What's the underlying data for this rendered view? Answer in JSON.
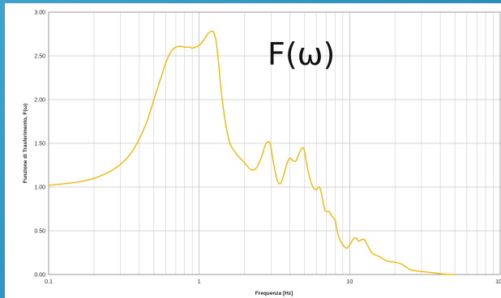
{
  "chart_data": {
    "type": "line",
    "title": "",
    "annotation": "F(ω)",
    "xlabel": "Frequenza [Hz]",
    "ylabel": "Funzione di Trasferimento, F(ω)",
    "xscale": "log",
    "xlim": [
      0.1,
      100
    ],
    "ylim": [
      0.0,
      3.0
    ],
    "grid": true,
    "x_ticks": [
      "0.1",
      "1",
      "10",
      "100"
    ],
    "y_ticks": [
      "0.00",
      "0.50",
      "1.00",
      "1.50",
      "2.00",
      "2.50",
      "3.00"
    ],
    "line_color": "#f2b807",
    "series": [
      {
        "x": [
          0.1,
          0.13,
          0.16,
          0.2,
          0.25,
          0.3,
          0.35,
          0.4,
          0.45,
          0.5,
          0.55,
          0.6,
          0.65,
          0.7,
          0.75,
          0.8,
          0.85,
          0.9,
          0.95,
          1.0,
          1.05,
          1.1,
          1.15,
          1.2,
          1.25,
          1.3,
          1.35,
          1.4,
          1.5,
          1.6,
          1.7,
          1.8,
          2.0,
          2.2,
          2.4,
          2.6,
          2.75,
          2.9,
          3.0,
          3.1,
          3.3,
          3.5,
          3.8,
          4.0,
          4.2,
          4.4,
          4.6,
          4.8,
          4.9,
          5.0,
          5.2,
          5.4,
          5.6,
          5.8,
          6.0,
          6.3,
          6.5,
          6.8,
          7.0,
          7.3,
          7.6,
          8.0,
          8.3,
          8.6,
          9.0,
          9.5,
          10.0,
          10.5,
          11.0,
          11.5,
          12.0,
          12.5,
          13.0,
          14.0,
          15.0,
          16.0,
          17.0,
          18.0,
          20.0,
          22.0,
          25.0,
          28.0,
          32.0,
          36.0,
          40.0,
          45.0,
          50.0
        ],
        "y": [
          1.02,
          1.04,
          1.06,
          1.1,
          1.17,
          1.26,
          1.38,
          1.55,
          1.75,
          2.0,
          2.22,
          2.42,
          2.55,
          2.6,
          2.61,
          2.6,
          2.6,
          2.59,
          2.6,
          2.62,
          2.66,
          2.71,
          2.76,
          2.78,
          2.77,
          2.65,
          2.4,
          2.1,
          1.72,
          1.5,
          1.42,
          1.36,
          1.28,
          1.2,
          1.22,
          1.35,
          1.48,
          1.52,
          1.45,
          1.3,
          1.08,
          1.05,
          1.25,
          1.33,
          1.3,
          1.3,
          1.38,
          1.44,
          1.45,
          1.42,
          1.25,
          1.12,
          1.03,
          0.98,
          0.97,
          1.0,
          0.92,
          0.75,
          0.72,
          0.72,
          0.67,
          0.62,
          0.48,
          0.4,
          0.34,
          0.3,
          0.34,
          0.4,
          0.42,
          0.38,
          0.4,
          0.4,
          0.35,
          0.25,
          0.22,
          0.2,
          0.17,
          0.15,
          0.14,
          0.12,
          0.06,
          0.04,
          0.03,
          0.02,
          0.01,
          0.0,
          0.0
        ]
      }
    ]
  }
}
